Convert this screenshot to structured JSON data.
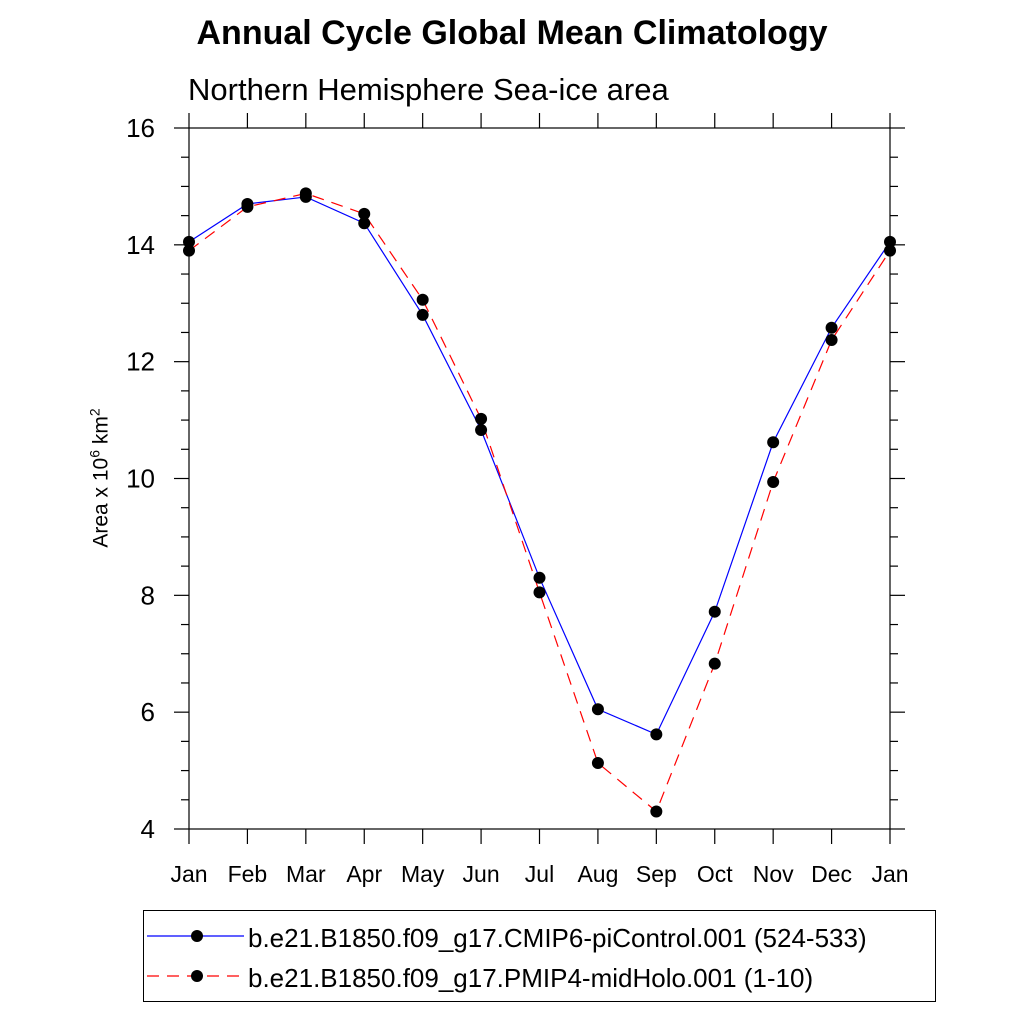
{
  "chart_data": {
    "type": "line",
    "title": "Annual Cycle Global Mean Climatology",
    "subtitle": "Northern Hemisphere Sea-ice area",
    "ylabel_base": "Area x 10",
    "ylabel_exp1": "6",
    "ylabel_unit": " km",
    "ylabel_exp2": "2",
    "xlabel": "",
    "categories": [
      "Jan",
      "Feb",
      "Mar",
      "Apr",
      "May",
      "Jun",
      "Jul",
      "Aug",
      "Sep",
      "Oct",
      "Nov",
      "Dec",
      "Jan"
    ],
    "ylim": [
      4,
      16
    ],
    "yticks": [
      4,
      6,
      8,
      10,
      12,
      14,
      16
    ],
    "ytick_labels": [
      "4",
      "6",
      "8",
      "10",
      "12",
      "14",
      "16"
    ],
    "series": [
      {
        "name": "b.e21.B1850.f09_g17.CMIP6-piControl.001 (524-533)",
        "color": "#0000ff",
        "dash": "solid",
        "values": [
          14.05,
          14.7,
          14.82,
          14.37,
          12.8,
          10.83,
          8.3,
          6.05,
          5.62,
          7.72,
          10.62,
          12.58,
          14.05
        ]
      },
      {
        "name": "b.e21.B1850.f09_g17.PMIP4-midHolo.001 (1-10)",
        "color": "#ff0000",
        "dash": "dashed",
        "values": [
          13.9,
          14.65,
          14.88,
          14.53,
          13.06,
          11.02,
          8.05,
          5.13,
          4.3,
          6.83,
          9.94,
          12.37,
          13.9
        ]
      }
    ]
  }
}
